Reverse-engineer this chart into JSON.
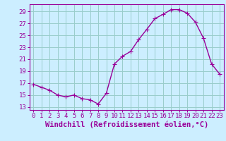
{
  "x": [
    0,
    1,
    2,
    3,
    4,
    5,
    6,
    7,
    8,
    9,
    10,
    11,
    12,
    13,
    14,
    15,
    16,
    17,
    18,
    19,
    20,
    21,
    22,
    23
  ],
  "y": [
    16.8,
    16.3,
    15.8,
    15.0,
    14.7,
    15.0,
    14.4,
    14.2,
    13.5,
    15.3,
    20.2,
    21.5,
    22.3,
    24.3,
    26.0,
    27.8,
    28.5,
    29.3,
    29.3,
    28.7,
    27.2,
    24.5,
    20.2,
    18.5
  ],
  "line_color": "#990099",
  "marker": "+",
  "marker_size": 4,
  "bg_color": "#cceeff",
  "grid_color": "#99cccc",
  "xlabel": "Windchill (Refroidissement éolien,°C)",
  "xlabel_color": "#990099",
  "yticks": [
    13,
    15,
    17,
    19,
    21,
    23,
    25,
    27,
    29
  ],
  "xticks": [
    0,
    1,
    2,
    3,
    4,
    5,
    6,
    7,
    8,
    9,
    10,
    11,
    12,
    13,
    14,
    15,
    16,
    17,
    18,
    19,
    20,
    21,
    22,
    23
  ],
  "xlim": [
    -0.5,
    23.5
  ],
  "ylim": [
    12.5,
    30.2
  ],
  "tick_color": "#990099",
  "tick_label_fontsize": 6.5,
  "xlabel_fontsize": 7.5,
  "spine_color": "#990099",
  "linewidth": 1.0,
  "markeredgewidth": 0.8
}
